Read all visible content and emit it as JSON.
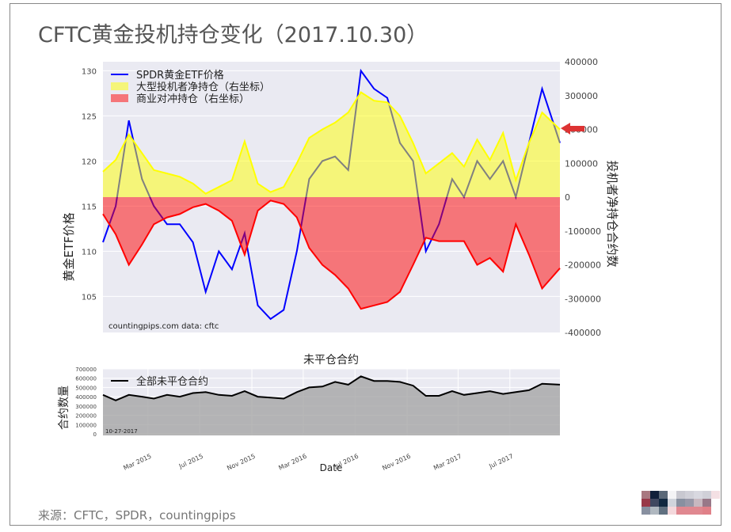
{
  "title": "CFTC黄金投机持仓变化（2017.10.30）",
  "source": "来源：CFTC，SPDR，countingpips",
  "colors": {
    "price": "#0000ff",
    "spec": "#ffff00",
    "comm": "#ff0000",
    "oi": "#000000",
    "bg": "#eaeaf2",
    "arrow": "#dd3333"
  },
  "chart_data": [
    {
      "type": "line",
      "title": "",
      "ylabel": "黄金ETF价格",
      "y2label": "投机者净持仓合约数",
      "ylim": [
        101,
        131
      ],
      "y2lim": [
        -400000,
        400000
      ],
      "yticks": [
        105,
        110,
        115,
        120,
        125,
        130
      ],
      "y2ticks": [
        400000,
        300000,
        200000,
        100000,
        0,
        -100000,
        -200000,
        -300000,
        -400000
      ],
      "annotation": "countingpips.com    data: cftc",
      "x": [
        "2014-11-15",
        "2014-12-15",
        "2015-01-15",
        "2015-02-15",
        "2015-03-15",
        "2015-04-15",
        "2015-05-15",
        "2015-06-15",
        "2015-07-15",
        "2015-08-15",
        "2015-09-15",
        "2015-10-15",
        "2015-11-15",
        "2015-12-15",
        "2016-01-15",
        "2016-02-15",
        "2016-03-15",
        "2016-04-15",
        "2016-05-15",
        "2016-06-15",
        "2016-07-15",
        "2016-08-15",
        "2016-09-15",
        "2016-10-15",
        "2016-11-15",
        "2016-12-15",
        "2017-01-15",
        "2017-02-15",
        "2017-03-15",
        "2017-04-15",
        "2017-05-15",
        "2017-06-15",
        "2017-07-15",
        "2017-08-15",
        "2017-09-15",
        "2017-10-27"
      ],
      "series": [
        {
          "name": "SPDR黄金ETF价格",
          "axis": "left",
          "kind": "line",
          "values": [
            111,
            115,
            124.5,
            118,
            115,
            113,
            113,
            111,
            105.5,
            110,
            108,
            112,
            104,
            102.5,
            103.5,
            110,
            118,
            120,
            120.5,
            119,
            130,
            128,
            127,
            122,
            120,
            110,
            113,
            118,
            116,
            120,
            118,
            120,
            116,
            122,
            128,
            122
          ]
        },
        {
          "name": "大型投机者净持仓（右坐标）",
          "axis": "right",
          "kind": "fill",
          "values": [
            75000,
            110000,
            185000,
            130000,
            80000,
            70000,
            60000,
            40000,
            10000,
            30000,
            50000,
            165000,
            40000,
            15000,
            30000,
            100000,
            175000,
            200000,
            220000,
            250000,
            310000,
            285000,
            280000,
            240000,
            160000,
            70000,
            100000,
            130000,
            90000,
            170000,
            110000,
            190000,
            50000,
            160000,
            250000,
            200000
          ]
        },
        {
          "name": "商业对冲持仓（右坐标）",
          "axis": "right",
          "kind": "fill",
          "values": [
            -50000,
            -110000,
            -200000,
            -140000,
            -80000,
            -60000,
            -50000,
            -30000,
            -20000,
            -40000,
            -70000,
            -170000,
            -40000,
            -10000,
            -20000,
            -60000,
            -150000,
            -200000,
            -230000,
            -270000,
            -330000,
            -320000,
            -310000,
            -280000,
            -200000,
            -120000,
            -130000,
            -130000,
            -130000,
            -200000,
            -180000,
            -220000,
            -80000,
            -170000,
            -270000,
            -210000
          ]
        }
      ]
    },
    {
      "type": "area",
      "title": "未平仓合约",
      "ylabel": "合约数量",
      "xlabel": "Date",
      "ylim": [
        0,
        700000
      ],
      "yticks": [
        0,
        100000,
        200000,
        300000,
        400000,
        500000,
        600000,
        700000
      ],
      "xticks": [
        "Mar 2015",
        "Jul 2015",
        "Nov 2015",
        "Mar 2016",
        "Jul 2016",
        "Nov 2016",
        "Mar 2017",
        "Jul 2017"
      ],
      "xtick_dates": [
        "2015-03-01",
        "2015-07-01",
        "2015-11-01",
        "2016-03-01",
        "2016-07-01",
        "2016-11-01",
        "2017-03-01",
        "2017-07-01"
      ],
      "annotation": "10-27-2017",
      "series": [
        {
          "name": "全部未平仓合约",
          "values": [
            420000,
            360000,
            420000,
            400000,
            380000,
            420000,
            400000,
            440000,
            450000,
            420000,
            410000,
            460000,
            400000,
            390000,
            380000,
            450000,
            500000,
            510000,
            560000,
            530000,
            620000,
            570000,
            570000,
            560000,
            520000,
            410000,
            410000,
            460000,
            420000,
            440000,
            460000,
            430000,
            450000,
            470000,
            540000,
            530000
          ]
        }
      ]
    }
  ],
  "pixel_logo": [
    "#a87880",
    "#10203a",
    "#5a6878",
    "#f4f4f6",
    "#c8c8d0",
    "#d0d0d8",
    "#d8d8e0",
    "#d0d0d8",
    "#f4e0e4",
    "#983848",
    "#404860",
    "#102840",
    "#d0d4dc",
    "#8890a0",
    "#9898a8",
    "#c8b8c0",
    "#987888",
    "#ffffff",
    "#8890a0",
    "#b0b8c0",
    "#607080",
    "#f4d8dc",
    "#e08890",
    "#e08890",
    "#e08890",
    "#e08088",
    "#ffffff"
  ]
}
